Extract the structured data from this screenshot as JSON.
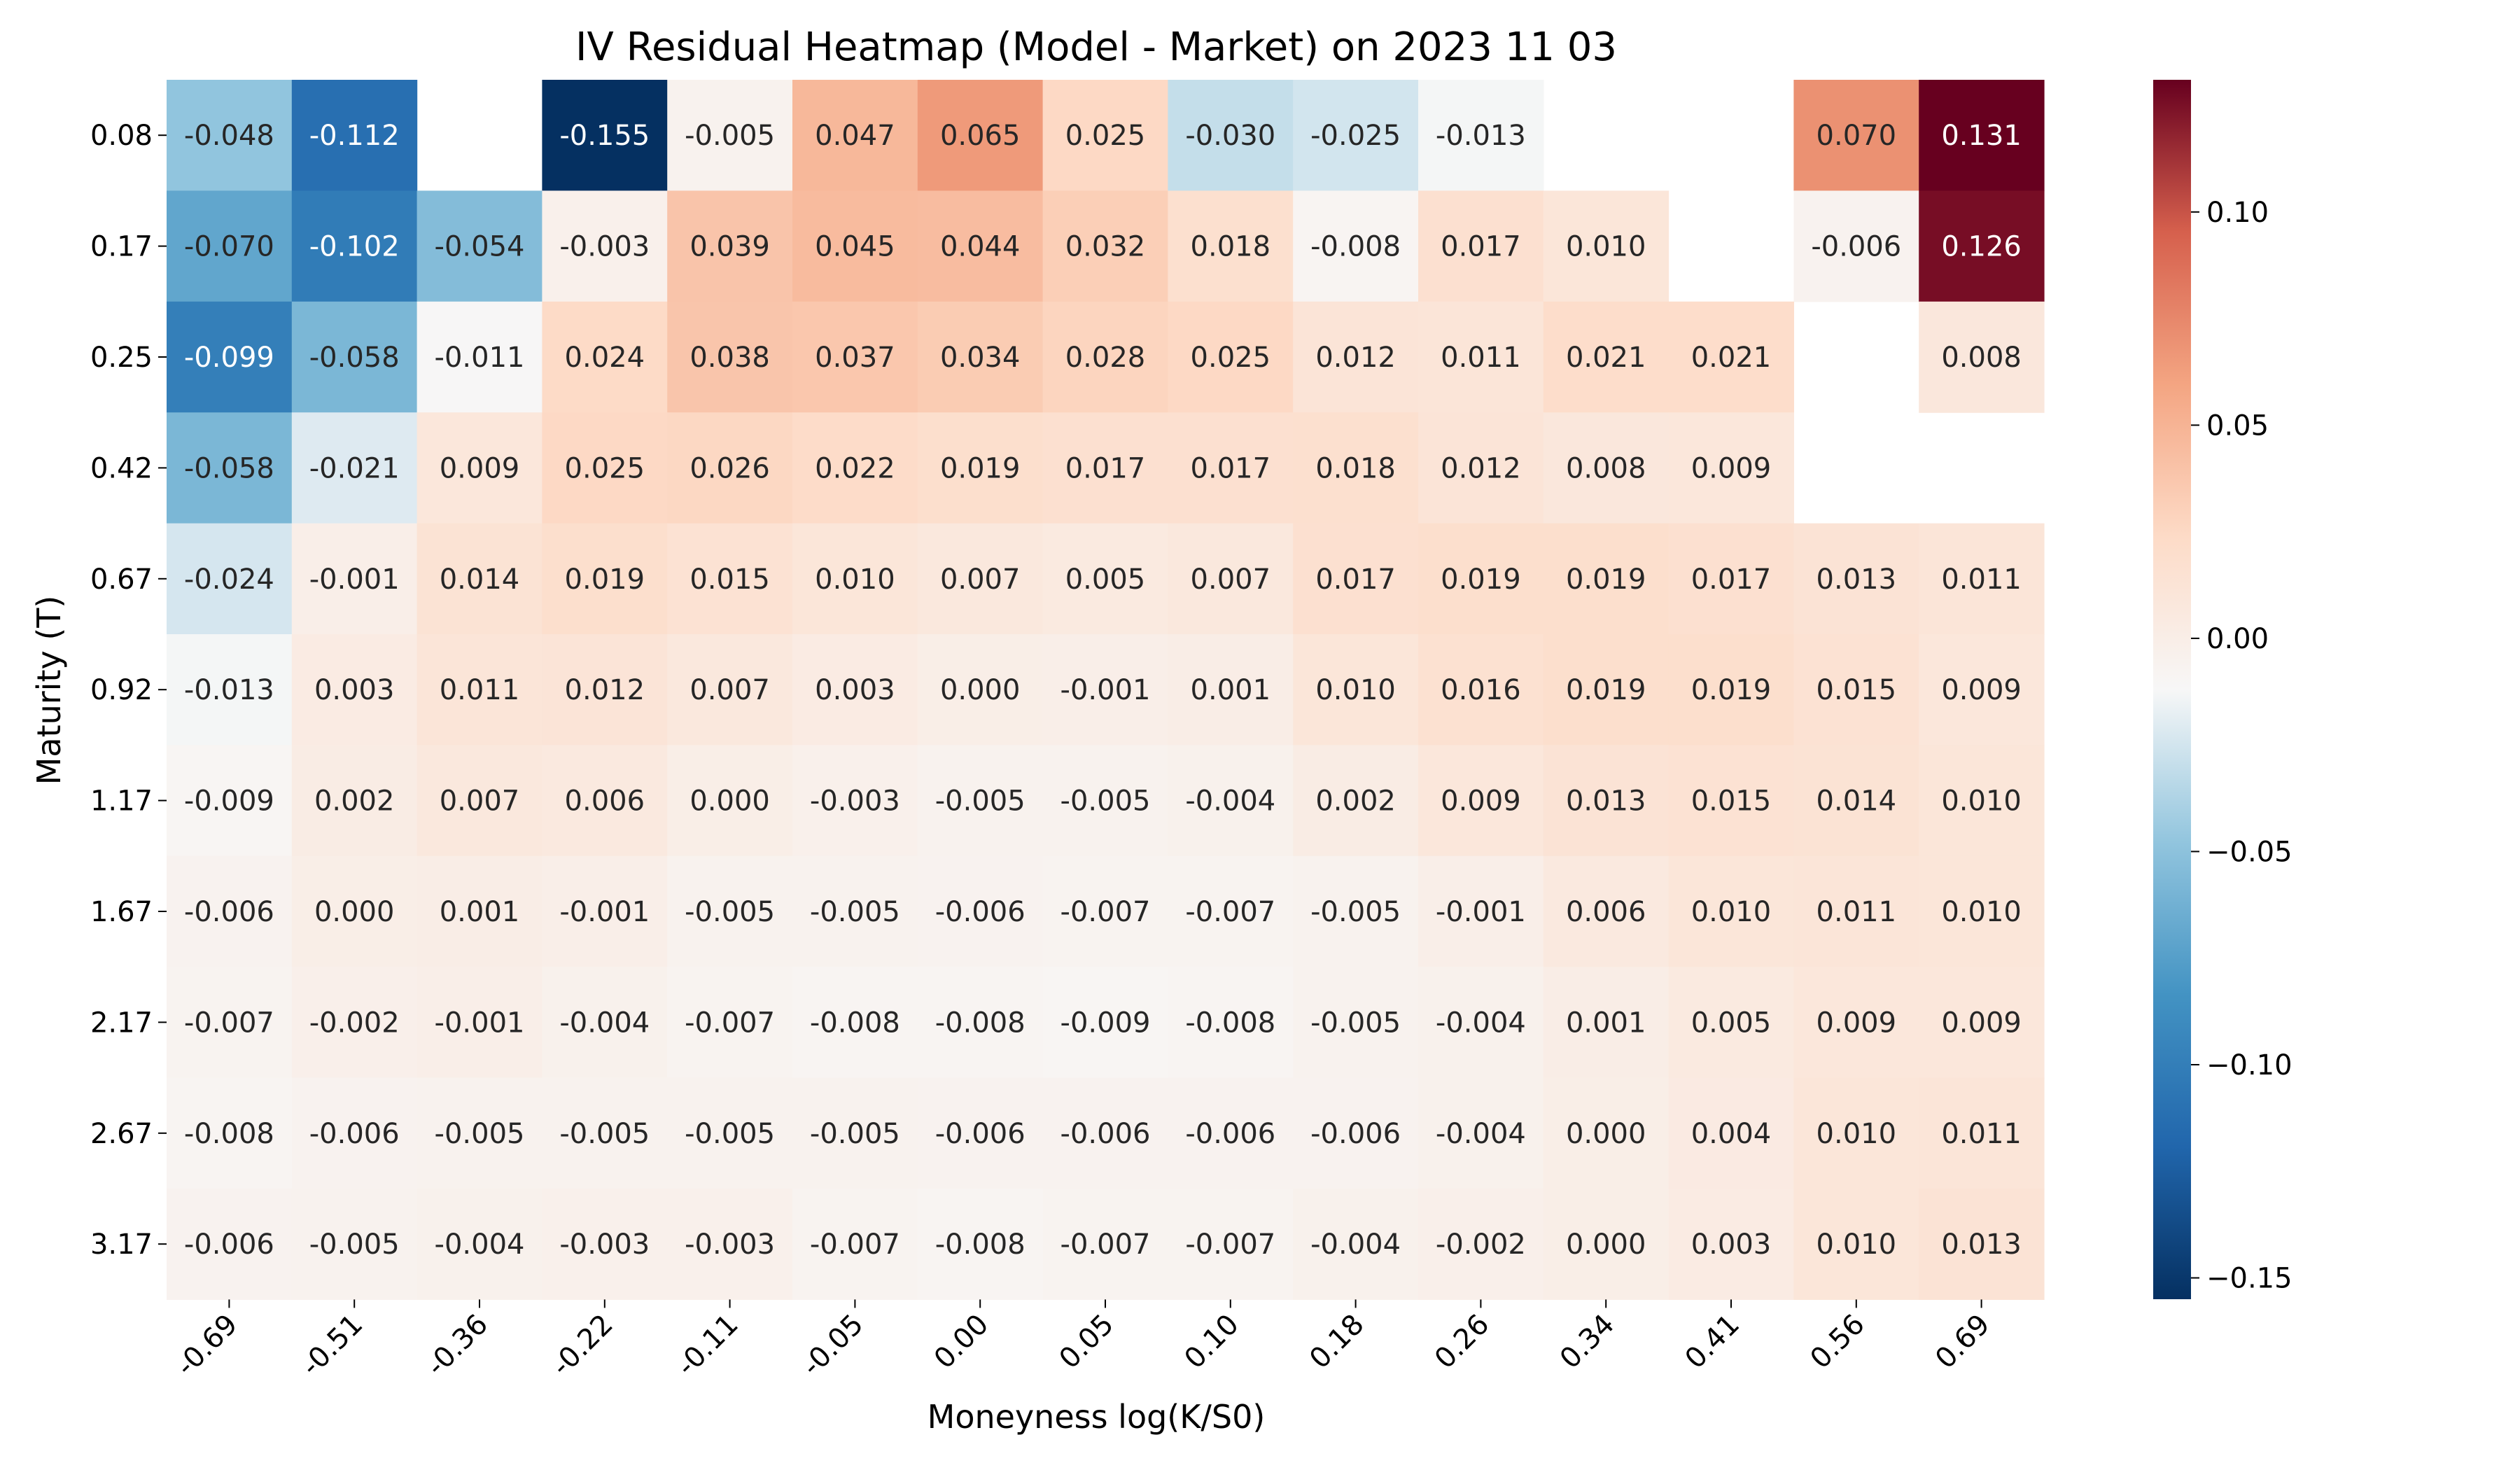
{
  "chart_data": {
    "type": "heatmap",
    "title": "IV Residual Heatmap (Model - Market) on 2023 11 03",
    "xlabel": "Moneyness log(K/S0)",
    "ylabel": "Maturity (T)",
    "x_categories": [
      "-0.69",
      "-0.51",
      "-0.36",
      "-0.22",
      "-0.11",
      "-0.05",
      "0.00",
      "0.05",
      "0.10",
      "0.18",
      "0.26",
      "0.34",
      "0.41",
      "0.56",
      "0.69"
    ],
    "y_categories": [
      "0.08",
      "0.17",
      "0.25",
      "0.42",
      "0.67",
      "0.92",
      "1.17",
      "1.67",
      "2.17",
      "2.67",
      "3.17"
    ],
    "values": [
      [
        -0.048,
        -0.112,
        null,
        -0.155,
        -0.005,
        0.047,
        0.065,
        0.025,
        -0.03,
        -0.025,
        -0.013,
        null,
        null,
        0.07,
        0.131
      ],
      [
        -0.07,
        -0.102,
        -0.054,
        -0.003,
        0.039,
        0.045,
        0.044,
        0.032,
        0.018,
        -0.008,
        0.017,
        0.01,
        null,
        -0.006,
        0.126
      ],
      [
        -0.099,
        -0.058,
        -0.011,
        0.024,
        0.038,
        0.037,
        0.034,
        0.028,
        0.025,
        0.012,
        0.011,
        0.021,
        0.021,
        null,
        0.008
      ],
      [
        -0.058,
        -0.021,
        0.009,
        0.025,
        0.026,
        0.022,
        0.019,
        0.017,
        0.017,
        0.018,
        0.012,
        0.008,
        0.009,
        null,
        null
      ],
      [
        -0.024,
        -0.001,
        0.014,
        0.019,
        0.015,
        0.01,
        0.007,
        0.005,
        0.007,
        0.017,
        0.019,
        0.019,
        0.017,
        0.013,
        0.011
      ],
      [
        -0.013,
        0.003,
        0.011,
        0.012,
        0.007,
        0.003,
        0.0,
        -0.001,
        0.001,
        0.01,
        0.016,
        0.019,
        0.019,
        0.015,
        0.009
      ],
      [
        -0.009,
        0.002,
        0.007,
        0.006,
        0.0,
        -0.003,
        -0.005,
        -0.005,
        -0.004,
        0.002,
        0.009,
        0.013,
        0.015,
        0.014,
        0.01
      ],
      [
        -0.006,
        -0.0,
        0.001,
        -0.001,
        -0.005,
        -0.005,
        -0.006,
        -0.007,
        -0.007,
        -0.005,
        -0.001,
        0.006,
        0.01,
        0.011,
        0.01
      ],
      [
        -0.007,
        -0.002,
        -0.001,
        -0.004,
        -0.007,
        -0.008,
        -0.008,
        -0.009,
        -0.008,
        -0.005,
        -0.004,
        0.001,
        0.005,
        0.009,
        0.009
      ],
      [
        -0.008,
        -0.006,
        -0.005,
        -0.005,
        -0.005,
        -0.005,
        -0.006,
        -0.006,
        -0.006,
        -0.006,
        -0.004,
        -0.0,
        0.004,
        0.01,
        0.011
      ],
      [
        -0.006,
        -0.005,
        -0.004,
        -0.003,
        -0.003,
        -0.007,
        -0.008,
        -0.007,
        -0.007,
        -0.004,
        -0.002,
        -0.0,
        0.003,
        0.01,
        0.013
      ]
    ],
    "value_format": "3 decimals",
    "colormap": "RdBu_r",
    "vmin": -0.155,
    "vmax": 0.131,
    "colorbar_ticks": [
      0.1,
      0.05,
      0.0,
      -0.05,
      -0.1,
      -0.15
    ],
    "colorbar_tick_labels": [
      "0.10",
      "0.05",
      "0.00",
      "−0.05",
      "−0.10",
      "−0.15"
    ],
    "colorbar_placement": "right",
    "missing_cells": "blank",
    "grid": false
  }
}
